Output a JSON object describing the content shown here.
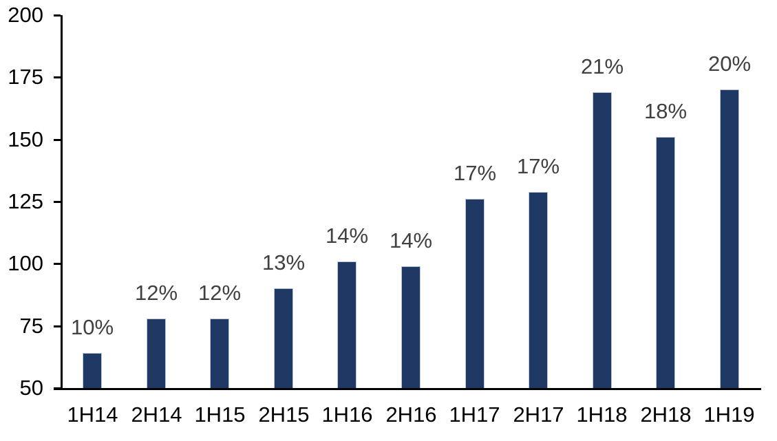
{
  "chart_data": {
    "type": "bar",
    "title": "",
    "xlabel": "",
    "ylabel": "",
    "categories": [
      "1H14",
      "2H14",
      "1H15",
      "2H15",
      "1H16",
      "2H16",
      "1H17",
      "2H17",
      "1H18",
      "2H18",
      "1H19"
    ],
    "values": [
      64,
      78,
      78,
      90,
      101,
      99,
      126,
      129,
      169,
      151,
      170
    ],
    "bar_labels": [
      "10%",
      "12%",
      "12%",
      "13%",
      "14%",
      "14%",
      "17%",
      "17%",
      "21%",
      "18%",
      "20%"
    ],
    "yticks": [
      50,
      75,
      100,
      125,
      150,
      175,
      200
    ],
    "ylim": [
      50,
      200
    ],
    "grid": false,
    "legend": null,
    "colors": {
      "bar_fill": "#1F3864",
      "bar_border": "#BCC8DA",
      "data_label": "#404040",
      "axis": "#000000",
      "tick_label": "#000000",
      "background": "#FFFFFF"
    }
  }
}
